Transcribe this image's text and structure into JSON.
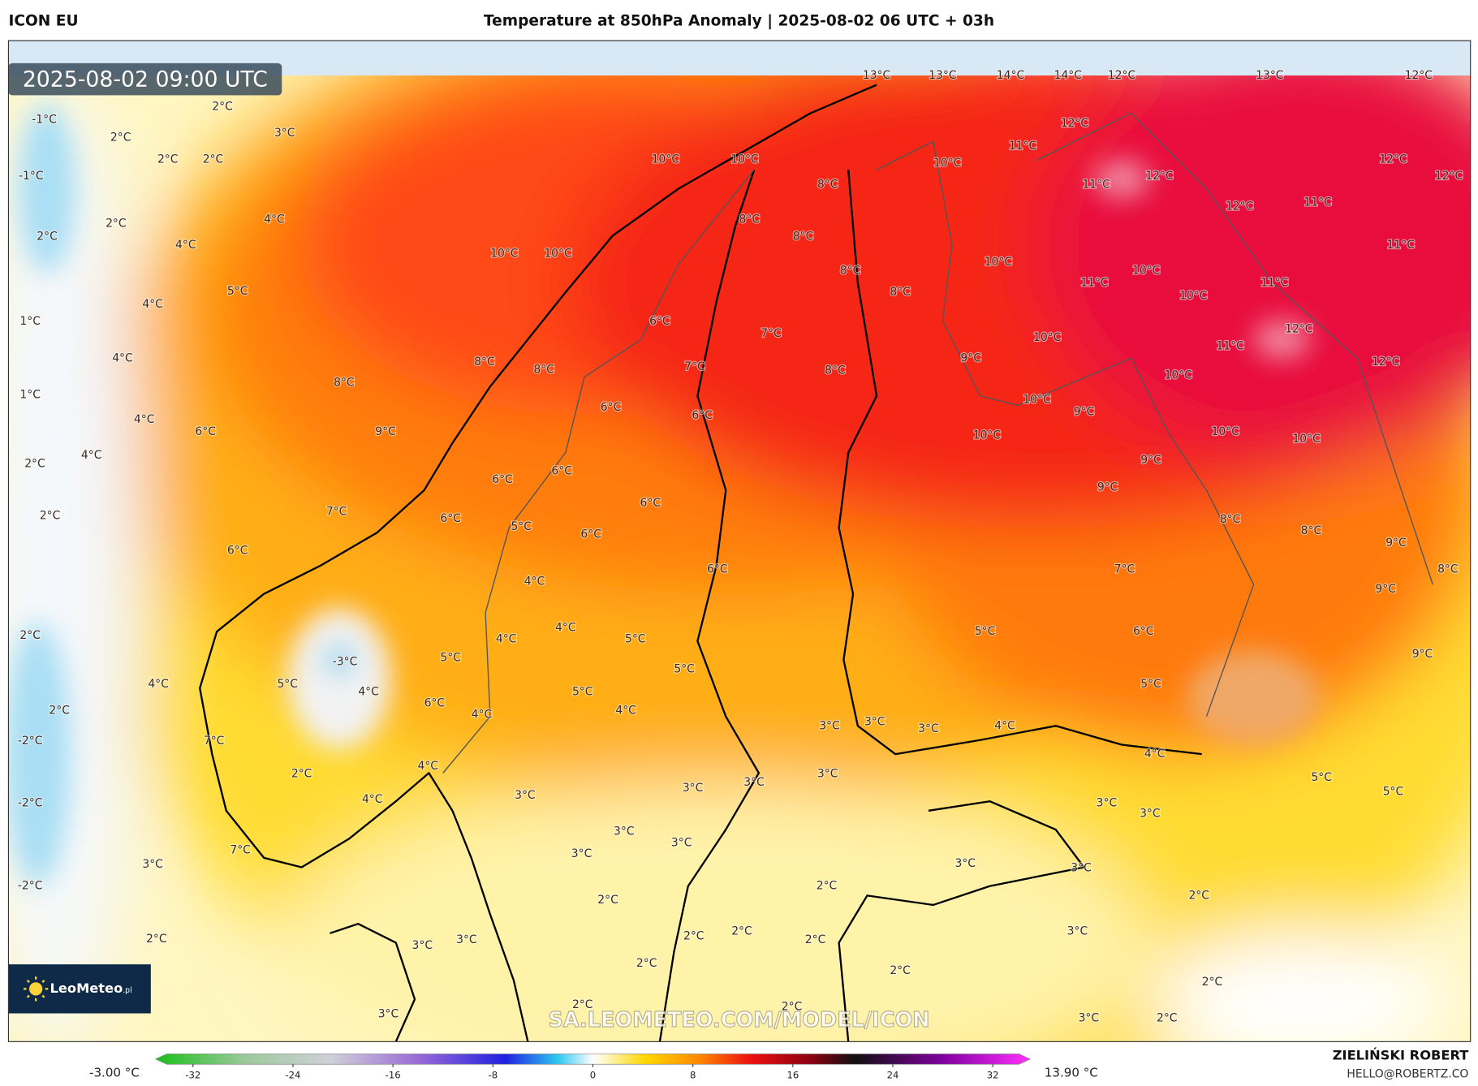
{
  "header": {
    "model": "ICON EU",
    "title": "Temperature at 850hPa Anomaly | 2025-08-02 06 UTC + 03h"
  },
  "map": {
    "timestamp": "2025-08-02 09:00 UTC",
    "watermark": "SA.LEOMETEO.COM/MODEL/ICON",
    "logo": "LeoMeteo",
    "logo_suffix": ".pl",
    "labels": [
      "13°C",
      "13°C",
      "14°C",
      "14°C",
      "12°C",
      "13°C",
      "12°C",
      "2°C",
      "-1°C",
      "3°C",
      "2°C",
      "2°C",
      "2°C",
      "-1°C",
      "10°C",
      "10°C",
      "10°C",
      "11°C",
      "12°C",
      "11°C",
      "12°C",
      "12°C",
      "12°C",
      "8°C",
      "12°C",
      "11°C",
      "2°C",
      "4°C",
      "8°C",
      "8°C",
      "2°C",
      "4°C",
      "10°C",
      "10°C",
      "10°C",
      "11°C",
      "8°C",
      "10°C",
      "11°C",
      "11°C",
      "5°C",
      "8°C",
      "4°C",
      "10°C",
      "6°C",
      "1°C",
      "7°C",
      "12°C",
      "10°C",
      "11°C",
      "4°C",
      "8°C",
      "8°C",
      "9°C",
      "12°C",
      "7°C",
      "8°C",
      "10°C",
      "8°C",
      "1°C",
      "10°C",
      "6°C",
      "6°C",
      "9°C",
      "4°C",
      "6°C",
      "9°C",
      "10°C",
      "10°C",
      "10°C",
      "4°C",
      "2°C",
      "9°C",
      "6°C",
      "6°C",
      "9°C",
      "7°C",
      "6°C",
      "2°C",
      "6°C",
      "8°C",
      "5°C",
      "6°C",
      "8°C",
      "9°C",
      "6°C",
      "6°C",
      "7°C",
      "8°C",
      "4°C",
      "9°C",
      "4°C",
      "5°C",
      "6°C",
      "2°C",
      "5°C",
      "4°C",
      "5°C",
      "9°C",
      "-3°C",
      "5°C",
      "5°C",
      "4°C",
      "5°C",
      "4°C",
      "5°C",
      "6°C",
      "4°C",
      "2°C",
      "4°C",
      "3°C",
      "3°C",
      "3°C",
      "4°C",
      "-2°C",
      "7°C",
      "4°C",
      "3°C",
      "2°C",
      "4°C",
      "5°C",
      "3°C",
      "3°C",
      "5°C",
      "4°C",
      "3°C",
      "-2°C",
      "3°C",
      "3°C",
      "3°C",
      "3°C",
      "7°C",
      "3°C",
      "3°C",
      "3°C",
      "3°C",
      "-2°C",
      "2°C",
      "2°C",
      "2°C",
      "3°C",
      "3°C",
      "3°C",
      "2°C",
      "2°C",
      "2°C",
      "2°C",
      "2°C",
      "2°C",
      "2°C",
      "2°C",
      "2°C",
      "3°C",
      "2°C",
      "3°C"
    ]
  },
  "colorbar": {
    "min_label": "-3.00 °C",
    "max_label": "13.90 °C",
    "lim": [
      -35,
      35
    ],
    "ticks": [
      -32,
      -24,
      -16,
      -8,
      0,
      8,
      16,
      24,
      32
    ]
  },
  "footer": {
    "author": "ZIELIŃSKI ROBERT",
    "email": "HELLO@ROBERTZ.CO"
  }
}
